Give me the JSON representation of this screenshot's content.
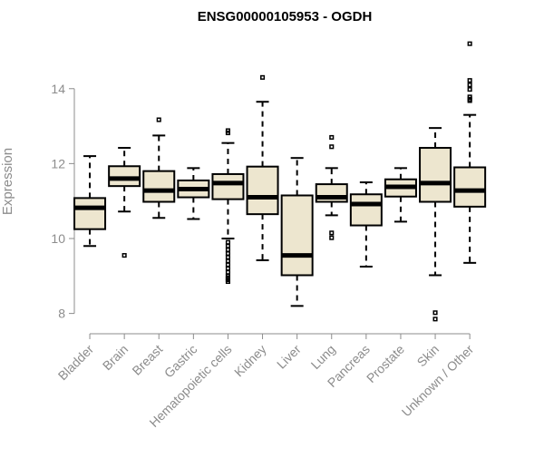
{
  "chart_data": {
    "type": "box",
    "title": "ENSG00000105953 - OGDH",
    "xlabel": "",
    "ylabel": "Expression",
    "ylim": [
      7.7,
      15.35
    ],
    "yticks": [
      8,
      10,
      12,
      14
    ],
    "grid": false,
    "colors": {
      "box_fill": "#ede6cf",
      "stroke": "#000000",
      "axis": "#8c8c8c",
      "title": "#000000"
    },
    "categories": [
      "Bladder",
      "Brain",
      "Breast",
      "Gastric",
      "Hematopoietic cells",
      "Kidney",
      "Liver",
      "Lung",
      "Pancreas",
      "Prostate",
      "Skin",
      "Unknown / Other"
    ],
    "series": [
      {
        "name": "Bladder",
        "whisker_low": 9.8,
        "q1": 10.25,
        "median": 10.82,
        "q3": 11.08,
        "whisker_high": 12.2,
        "outliers": []
      },
      {
        "name": "Brain",
        "whisker_low": 10.72,
        "q1": 11.4,
        "median": 11.6,
        "q3": 11.93,
        "whisker_high": 12.42,
        "outliers": [
          9.55
        ]
      },
      {
        "name": "Breast",
        "whisker_low": 10.55,
        "q1": 10.98,
        "median": 11.28,
        "q3": 11.8,
        "whisker_high": 12.75,
        "outliers": [
          13.17
        ]
      },
      {
        "name": "Gastric",
        "whisker_low": 10.52,
        "q1": 11.1,
        "median": 11.32,
        "q3": 11.55,
        "whisker_high": 11.88,
        "outliers": []
      },
      {
        "name": "Hematopoietic cells",
        "whisker_low": 10.0,
        "q1": 11.05,
        "median": 11.48,
        "q3": 11.72,
        "whisker_high": 12.55,
        "outliers": [
          12.82,
          12.88,
          9.9,
          9.8,
          9.7,
          9.6,
          9.5,
          9.4,
          9.3,
          9.2,
          9.1,
          9.0,
          8.95,
          8.9,
          8.85
        ]
      },
      {
        "name": "Kidney",
        "whisker_low": 9.42,
        "q1": 10.65,
        "median": 11.1,
        "q3": 11.92,
        "whisker_high": 13.65,
        "outliers": [
          14.3
        ]
      },
      {
        "name": "Liver",
        "whisker_low": 8.2,
        "q1": 9.02,
        "median": 9.55,
        "q3": 11.15,
        "whisker_high": 12.15,
        "outliers": []
      },
      {
        "name": "Lung",
        "whisker_low": 10.62,
        "q1": 10.98,
        "median": 11.1,
        "q3": 11.45,
        "whisker_high": 11.88,
        "outliers": [
          12.7,
          12.45,
          10.15,
          10.02
        ]
      },
      {
        "name": "Pancreas",
        "whisker_low": 9.25,
        "q1": 10.35,
        "median": 10.92,
        "q3": 11.18,
        "whisker_high": 11.5,
        "outliers": []
      },
      {
        "name": "Prostate",
        "whisker_low": 10.45,
        "q1": 11.12,
        "median": 11.38,
        "q3": 11.58,
        "whisker_high": 11.88,
        "outliers": []
      },
      {
        "name": "Skin",
        "whisker_low": 9.02,
        "q1": 10.98,
        "median": 11.48,
        "q3": 12.42,
        "whisker_high": 12.95,
        "outliers": [
          8.02,
          7.85
        ]
      },
      {
        "name": "Unknown / Other",
        "whisker_low": 9.35,
        "q1": 10.85,
        "median": 11.28,
        "q3": 11.9,
        "whisker_high": 13.3,
        "outliers": [
          15.2,
          14.22,
          14.1,
          13.98,
          13.78,
          13.72,
          13.68
        ]
      }
    ]
  }
}
